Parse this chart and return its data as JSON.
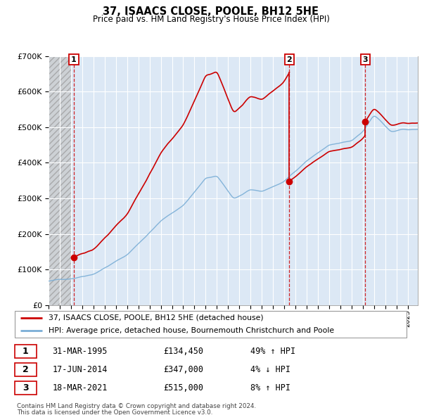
{
  "title": "37, ISAACS CLOSE, POOLE, BH12 5HE",
  "subtitle": "Price paid vs. HM Land Registry's House Price Index (HPI)",
  "legend_line1": "37, ISAACS CLOSE, POOLE, BH12 5HE (detached house)",
  "legend_line2": "HPI: Average price, detached house, Bournemouth Christchurch and Poole",
  "footnote1": "Contains HM Land Registry data © Crown copyright and database right 2024.",
  "footnote2": "This data is licensed under the Open Government Licence v3.0.",
  "transactions": [
    {
      "num": 1,
      "date": "31-MAR-1995",
      "price": 134450,
      "hpi_rel": "49% ↑ HPI",
      "x": 1995.25
    },
    {
      "num": 2,
      "date": "17-JUN-2014",
      "price": 347000,
      "hpi_rel": "4% ↓ HPI",
      "x": 2014.46
    },
    {
      "num": 3,
      "date": "18-MAR-2021",
      "price": 515000,
      "hpi_rel": "8% ↑ HPI",
      "x": 2021.21
    }
  ],
  "price_line_color": "#cc0000",
  "hpi_line_color": "#7aaed6",
  "dashed_line_color": "#cc0000",
  "plot_bg": "#dce8f5",
  "hatch_bg": "#d0d0d0",
  "ylim": [
    0,
    700000
  ],
  "xlim_start": 1993.0,
  "xlim_end": 2025.9,
  "hatch_end": 1995.0
}
